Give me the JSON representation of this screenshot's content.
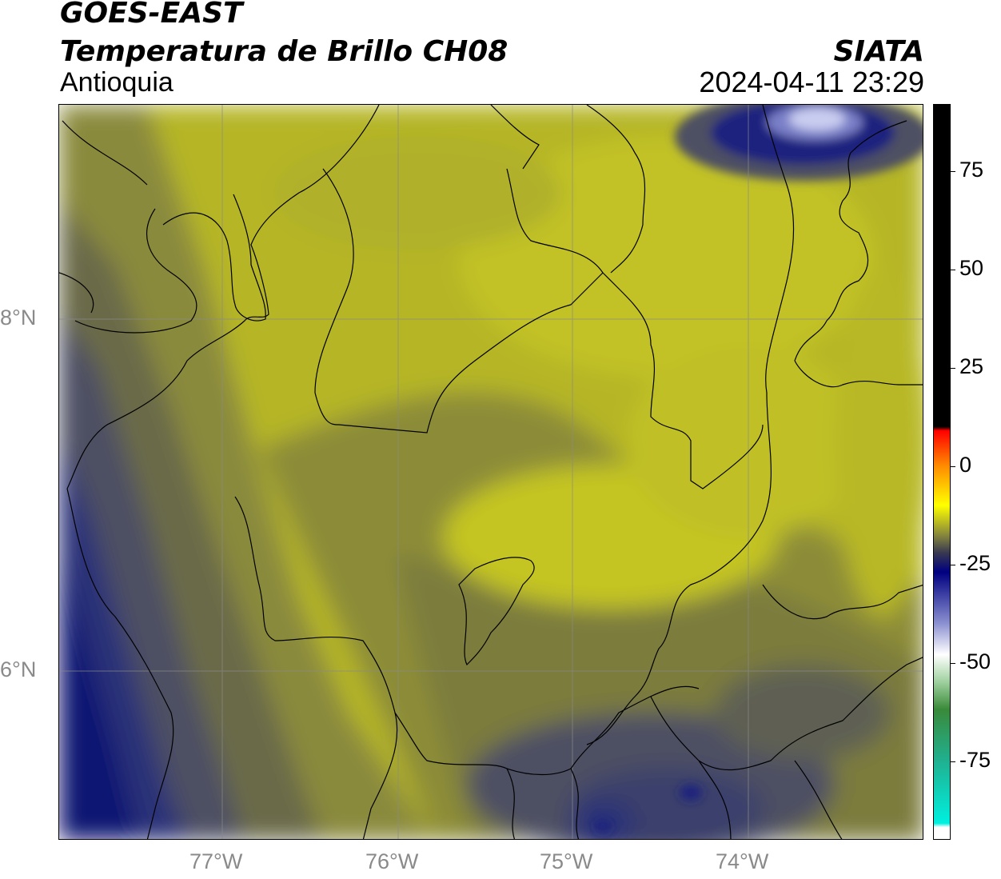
{
  "header": {
    "satellite": "GOES-EAST",
    "product": "Temperatura de Brillo CH08",
    "region": "Antioquia",
    "organization": "SIATA",
    "datetime": "2024-04-11 23:29"
  },
  "map": {
    "lon_ticks": [
      "77°W",
      "76°W",
      "75°W",
      "74°W"
    ],
    "lat_ticks": [
      "8°N",
      "6°N"
    ],
    "gridlines": true,
    "colors": {
      "bright_yellow": "#c9c923",
      "olive_yellow": "#b5b528",
      "olive": "#999935",
      "dark_olive": "#7a7a3f",
      "grey": "#5e5f52",
      "slate": "#4a4d63",
      "navy": "#1a237e",
      "deep_navy": "#0a1070",
      "pale_lavender": "#c9cdf0"
    }
  },
  "colorbar": {
    "ticks": [
      "75",
      "50",
      "25",
      "0",
      "-25",
      "-50",
      "-75"
    ],
    "range": [
      -95,
      92
    ],
    "stops": [
      {
        "value": 92,
        "color": "#000000"
      },
      {
        "value": 10,
        "color": "#000000"
      },
      {
        "value": 9,
        "color": "#ff0000"
      },
      {
        "value": 0,
        "color": "#ff8c00"
      },
      {
        "value": -10,
        "color": "#ffff00"
      },
      {
        "value": -18,
        "color": "#808040"
      },
      {
        "value": -22,
        "color": "#3a3a50"
      },
      {
        "value": -27,
        "color": "#000080"
      },
      {
        "value": -40,
        "color": "#8a8fd0"
      },
      {
        "value": -48,
        "color": "#ffffff"
      },
      {
        "value": -55,
        "color": "#9fd09f"
      },
      {
        "value": -62,
        "color": "#3a8a3a"
      },
      {
        "value": -75,
        "color": "#20b090"
      },
      {
        "value": -91,
        "color": "#00f0e0"
      },
      {
        "value": -92,
        "color": "#ffffff"
      },
      {
        "value": -95,
        "color": "#ffffff"
      }
    ]
  }
}
